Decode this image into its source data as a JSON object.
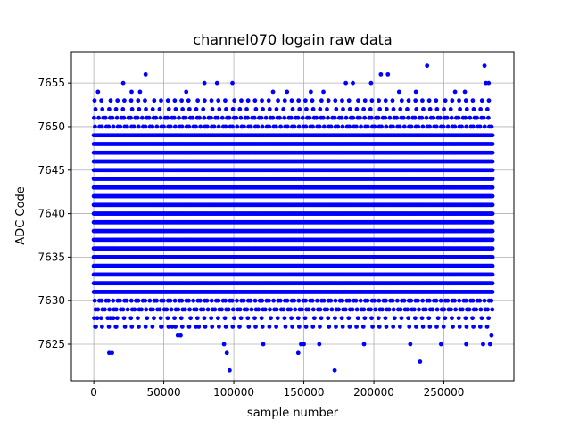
{
  "chart_data": {
    "type": "scatter",
    "title": "channel070 logain raw data",
    "xlabel": "sample number",
    "ylabel": "ADC Code",
    "xlim": [
      -16000,
      300000
    ],
    "ylim": [
      7620.8,
      7658.6
    ],
    "xticks": [
      0,
      50000,
      100000,
      150000,
      200000,
      250000
    ],
    "xtick_labels": [
      "0",
      "50000",
      "100000",
      "150000",
      "200000",
      "250000"
    ],
    "yticks": [
      7625,
      7630,
      7635,
      7640,
      7645,
      7650,
      7655
    ],
    "ytick_labels": [
      "7625",
      "7630",
      "7635",
      "7640",
      "7645",
      "7650",
      "7655"
    ],
    "grid": true,
    "marker_color": "#0000ff",
    "series": [
      {
        "x_range": [
          0,
          285000
        ],
        "dense_band": [
          7627,
          7653
        ],
        "outliers": [
          {
            "x": 1500,
            "y": 7627
          },
          {
            "x": 2500,
            "y": 7628
          },
          {
            "x": 3000,
            "y": 7654
          },
          {
            "x": 11000,
            "y": 7624
          },
          {
            "x": 13000,
            "y": 7624
          },
          {
            "x": 10000,
            "y": 7628
          },
          {
            "x": 14000,
            "y": 7628
          },
          {
            "x": 16000,
            "y": 7627
          },
          {
            "x": 21000,
            "y": 7655
          },
          {
            "x": 27000,
            "y": 7654
          },
          {
            "x": 33000,
            "y": 7654
          },
          {
            "x": 37000,
            "y": 7656
          },
          {
            "x": 48000,
            "y": 7627
          },
          {
            "x": 56000,
            "y": 7627
          },
          {
            "x": 60000,
            "y": 7626
          },
          {
            "x": 62000,
            "y": 7626
          },
          {
            "x": 66000,
            "y": 7654
          },
          {
            "x": 75000,
            "y": 7627
          },
          {
            "x": 79000,
            "y": 7655
          },
          {
            "x": 88000,
            "y": 7655
          },
          {
            "x": 93000,
            "y": 7625
          },
          {
            "x": 95000,
            "y": 7624
          },
          {
            "x": 97000,
            "y": 7622
          },
          {
            "x": 99000,
            "y": 7655
          },
          {
            "x": 121000,
            "y": 7625
          },
          {
            "x": 128000,
            "y": 7654
          },
          {
            "x": 138000,
            "y": 7654
          },
          {
            "x": 146000,
            "y": 7624
          },
          {
            "x": 148000,
            "y": 7625
          },
          {
            "x": 150000,
            "y": 7625
          },
          {
            "x": 155000,
            "y": 7654
          },
          {
            "x": 161000,
            "y": 7625
          },
          {
            "x": 164000,
            "y": 7654
          },
          {
            "x": 172000,
            "y": 7622
          },
          {
            "x": 180000,
            "y": 7655
          },
          {
            "x": 185000,
            "y": 7655
          },
          {
            "x": 193000,
            "y": 7625
          },
          {
            "x": 198000,
            "y": 7655
          },
          {
            "x": 205000,
            "y": 7656
          },
          {
            "x": 210000,
            "y": 7656
          },
          {
            "x": 218000,
            "y": 7654
          },
          {
            "x": 226000,
            "y": 7625
          },
          {
            "x": 230000,
            "y": 7654
          },
          {
            "x": 233000,
            "y": 7623
          },
          {
            "x": 238000,
            "y": 7657
          },
          {
            "x": 248000,
            "y": 7625
          },
          {
            "x": 258000,
            "y": 7654
          },
          {
            "x": 265000,
            "y": 7654
          },
          {
            "x": 266000,
            "y": 7625
          },
          {
            "x": 278000,
            "y": 7625
          },
          {
            "x": 279000,
            "y": 7657
          },
          {
            "x": 280000,
            "y": 7655
          },
          {
            "x": 282000,
            "y": 7655
          },
          {
            "x": 283000,
            "y": 7625
          },
          {
            "x": 284000,
            "y": 7626
          }
        ]
      }
    ]
  }
}
